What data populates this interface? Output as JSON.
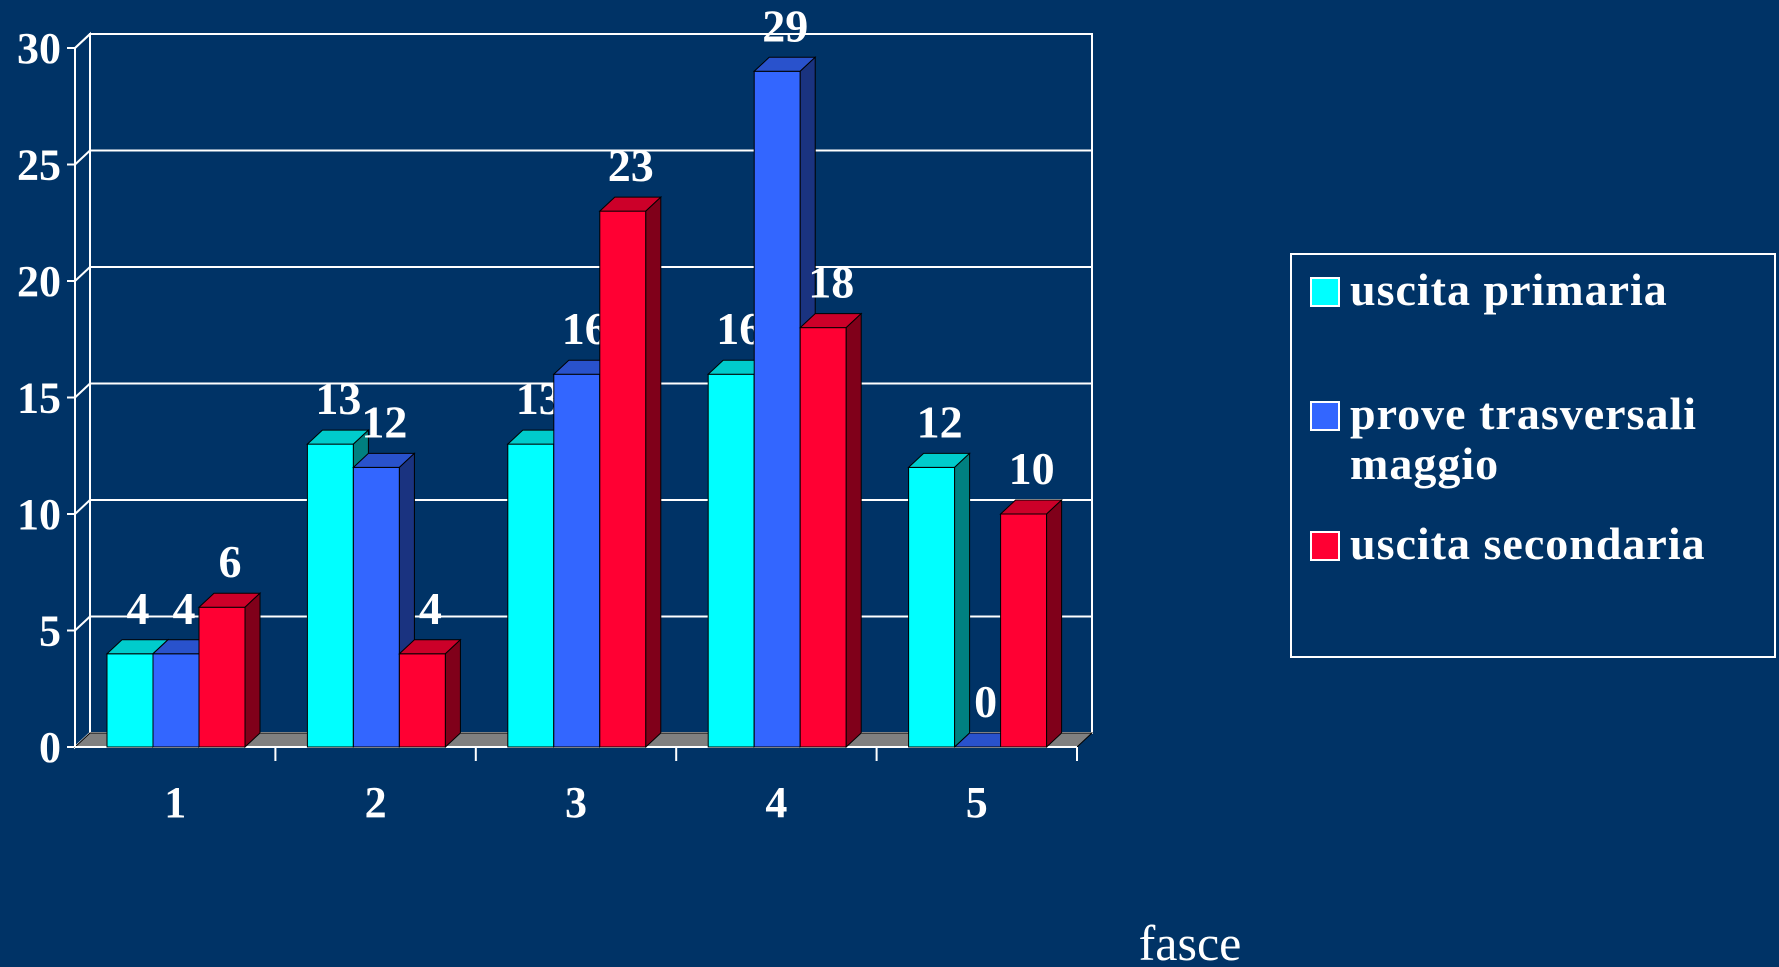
{
  "chart_data": {
    "type": "bar",
    "title": "",
    "xlabel": "fasce",
    "ylabel": "",
    "categories": [
      "1",
      "2",
      "3",
      "4",
      "5"
    ],
    "series": [
      {
        "name": "uscita primaria",
        "values": [
          4,
          13,
          13,
          16,
          12
        ],
        "color": "#00FFFF"
      },
      {
        "name": "prove trasversali maggio",
        "values": [
          4,
          12,
          16,
          29,
          0
        ],
        "color": "#3366FF"
      },
      {
        "name": "uscita secondaria",
        "values": [
          6,
          4,
          23,
          18,
          10
        ],
        "color": "#FF0033"
      }
    ],
    "ylim": [
      0,
      30
    ],
    "yticks": [
      "0",
      "5",
      "10",
      "15",
      "20",
      "25",
      "30"
    ],
    "grid": true,
    "legend": "right",
    "background": "#003366",
    "data_labels": true
  }
}
